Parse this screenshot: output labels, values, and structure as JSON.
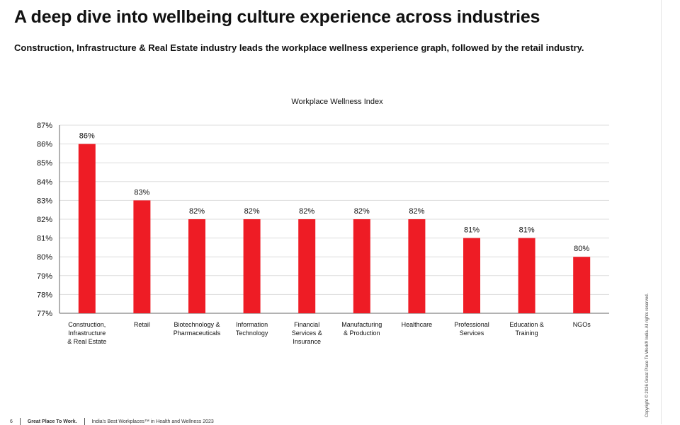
{
  "header": {
    "title": "A deep dive into wellbeing culture experience across industries",
    "subtitle": "Construction, Infrastructure & Real Estate industry leads the workplace wellness experience graph, followed by the retail industry."
  },
  "side_note": "Copyright © 2026 Great Place To Work® India. All rights reserved.",
  "footer": {
    "page_number": "6",
    "brand": "Great Place To Work.",
    "report": "India's Best Workplaces™ in Health and Wellness 2023"
  },
  "colors": {
    "bar": "#ee1c25",
    "grid": "#dddddd",
    "axis": "#666666",
    "text": "#111111"
  },
  "chart_data": {
    "type": "bar",
    "title": "Workplace Wellness Index",
    "categories": [
      "Construction, Infrastructure & Real Estate",
      "Retail",
      "Biotechnology & Pharmaceuticals",
      "Information Technology",
      "Financial Services & Insurance",
      "Manufacturing & Production",
      "Healthcare",
      "Professional Services",
      "Education & Training",
      "NGOs"
    ],
    "category_lines": [
      [
        "Construction,",
        "Infrastructure",
        "& Real Estate"
      ],
      [
        "Retail"
      ],
      [
        "Biotechnology &",
        "Pharmaceuticals"
      ],
      [
        "Information",
        "Technology"
      ],
      [
        "Financial",
        "Services &",
        "Insurance"
      ],
      [
        "Manufacturing",
        "& Production"
      ],
      [
        "Healthcare"
      ],
      [
        "Professional",
        "Services"
      ],
      [
        "Education &",
        "Training"
      ],
      [
        "NGOs"
      ]
    ],
    "values": [
      86,
      83,
      82,
      82,
      82,
      82,
      82,
      81,
      81,
      80
    ],
    "data_labels": [
      "86%",
      "83%",
      "82%",
      "82%",
      "82%",
      "82%",
      "82%",
      "81%",
      "81%",
      "80%"
    ],
    "y_ticks": [
      77,
      78,
      79,
      80,
      81,
      82,
      83,
      84,
      85,
      86,
      87
    ],
    "y_tick_labels": [
      "77%",
      "78%",
      "79%",
      "80%",
      "81%",
      "82%",
      "83%",
      "84%",
      "85%",
      "86%",
      "87%"
    ],
    "ylim": [
      77,
      87
    ],
    "xlabel": "",
    "ylabel": "",
    "grid": true,
    "legend": "none"
  }
}
